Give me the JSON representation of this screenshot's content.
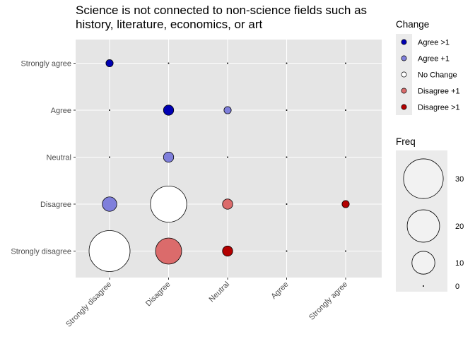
{
  "chart_data": {
    "type": "scatter",
    "title": "Science is not connected to non-science fields such as history, literature, economics, or art",
    "title_lines": [
      "Science is not connected to non-science fields such as",
      "history, literature, economics, or art"
    ],
    "x_categories": [
      "Strongly disagree",
      "Disagree",
      "Neutral",
      "Agree",
      "Strongly agree"
    ],
    "y_categories": [
      "Strongly agree",
      "Agree",
      "Neutral",
      "Disagree",
      "Strongly disagree"
    ],
    "points": [
      {
        "x": "Strongly disagree",
        "y": "Strongly agree",
        "freq": 1,
        "change": "Agree >1"
      },
      {
        "x": "Disagree",
        "y": "Strongly agree",
        "freq": 0,
        "change": "Agree >1"
      },
      {
        "x": "Neutral",
        "y": "Strongly agree",
        "freq": 0,
        "change": "Agree >1"
      },
      {
        "x": "Agree",
        "y": "Strongly agree",
        "freq": 0,
        "change": "Agree >1"
      },
      {
        "x": "Strongly agree",
        "y": "Strongly agree",
        "freq": 0,
        "change": "No Change"
      },
      {
        "x": "Strongly disagree",
        "y": "Agree",
        "freq": 0,
        "change": "Disagree +1"
      },
      {
        "x": "Disagree",
        "y": "Agree",
        "freq": 2,
        "change": "Agree >1"
      },
      {
        "x": "Neutral",
        "y": "Agree",
        "freq": 1,
        "change": "Agree +1"
      },
      {
        "x": "Agree",
        "y": "Agree",
        "freq": 0,
        "change": "No Change"
      },
      {
        "x": "Strongly agree",
        "y": "Agree",
        "freq": 0,
        "change": "Agree +1"
      },
      {
        "x": "Strongly disagree",
        "y": "Neutral",
        "freq": 0,
        "change": "Disagree >1"
      },
      {
        "x": "Disagree",
        "y": "Neutral",
        "freq": 2,
        "change": "Agree +1"
      },
      {
        "x": "Neutral",
        "y": "Neutral",
        "freq": 0,
        "change": "No Change"
      },
      {
        "x": "Agree",
        "y": "Neutral",
        "freq": 0,
        "change": "Agree +1"
      },
      {
        "x": "Strongly agree",
        "y": "Neutral",
        "freq": 0,
        "change": "Agree >1"
      },
      {
        "x": "Strongly disagree",
        "y": "Disagree",
        "freq": 4,
        "change": "Agree +1"
      },
      {
        "x": "Disagree",
        "y": "Disagree",
        "freq": 25,
        "change": "No Change"
      },
      {
        "x": "Neutral",
        "y": "Disagree",
        "freq": 2,
        "change": "Disagree +1"
      },
      {
        "x": "Agree",
        "y": "Disagree",
        "freq": 0,
        "change": "Disagree >1"
      },
      {
        "x": "Strongly agree",
        "y": "Disagree",
        "freq": 1,
        "change": "Disagree >1"
      },
      {
        "x": "Strongly disagree",
        "y": "Strongly disagree",
        "freq": 32,
        "change": "No Change"
      },
      {
        "x": "Disagree",
        "y": "Strongly disagree",
        "freq": 13,
        "change": "Disagree +1"
      },
      {
        "x": "Neutral",
        "y": "Strongly disagree",
        "freq": 2,
        "change": "Disagree >1"
      },
      {
        "x": "Agree",
        "y": "Strongly disagree",
        "freq": 0,
        "change": "Disagree >1"
      },
      {
        "x": "Strongly agree",
        "y": "Strongly disagree",
        "freq": 0,
        "change": "Disagree >1"
      }
    ],
    "color_legend": {
      "title": "Change",
      "items": [
        {
          "label": "Agree >1",
          "color": "#0000b3"
        },
        {
          "label": "Agree +1",
          "color": "#7f7fdb"
        },
        {
          "label": "No Change",
          "color": "#ffffff"
        },
        {
          "label": "Disagree +1",
          "color": "#db6b6b"
        },
        {
          "label": "Disagree >1",
          "color": "#b30000"
        }
      ]
    },
    "size_legend": {
      "title": "Freq",
      "breaks": [
        30,
        20,
        10,
        0
      ]
    },
    "max_freq": 32,
    "grid": true,
    "panel_background": "#e5e5e5",
    "legend_position": "right"
  }
}
